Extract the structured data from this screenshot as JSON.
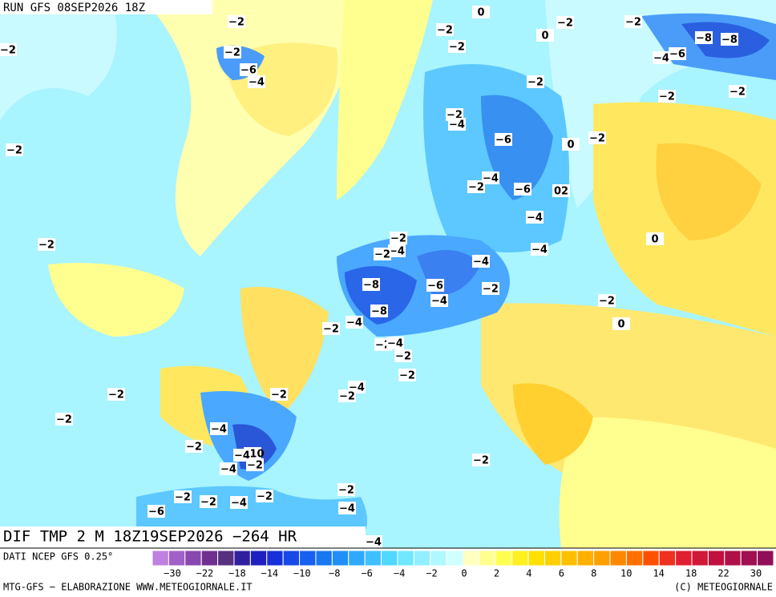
{
  "header": {
    "run": "RUN GFS 08SEP2026 18Z"
  },
  "map": {
    "title": "DIF TMP 2 M 18Z19SEP2026 −264 HR",
    "contour_labels": [
      "−2",
      "−2",
      "−6",
      "−4",
      "−2",
      "−2",
      "−2",
      "−2",
      "−2",
      "0",
      "−2",
      "−2",
      "0",
      "−2",
      "−2",
      "−8",
      "−8",
      "−4",
      "−6",
      "−2",
      "−2",
      "−2",
      "−2",
      "−4",
      "−6",
      "0",
      "−2",
      "−4",
      "−2",
      "−6",
      "02",
      "−4",
      "0",
      "−2",
      "−4",
      "−2",
      "−4",
      "−4",
      "−8",
      "−6",
      "−2",
      "−4",
      "−8",
      "−4",
      "−2",
      "−2",
      "0",
      "−2",
      "−4",
      "−2",
      "−2",
      "−4",
      "−2",
      "−2",
      "−4",
      "−2",
      "−10",
      "−4",
      "−2",
      "−4",
      "−2",
      "−2",
      "−2",
      "−4",
      "−2",
      "−6",
      "−2",
      "−4",
      "−4"
    ]
  },
  "footer": {
    "source": "DATI NCEP GFS 0.25°",
    "credit": "MTG-GFS − ELABORAZIONE WWW.METEOGIORNALE.IT",
    "copyright": "(C) METEOGIORNALE"
  },
  "legend": {
    "colors": [
      "#c080e0",
      "#a060c8",
      "#8848b0",
      "#703090",
      "#583080",
      "#3020a0",
      "#2020c0",
      "#1830d8",
      "#1848e8",
      "#1860f0",
      "#1878f0",
      "#2090f8",
      "#30a8ff",
      "#40c0ff",
      "#50d8ff",
      "#70e8ff",
      "#90f0ff",
      "#b0f8ff",
      "#d0ffff",
      "#ffffc0",
      "#ffff90",
      "#ffff50",
      "#fff020",
      "#ffe000",
      "#ffd000",
      "#ffc000",
      "#ffb000",
      "#ffa000",
      "#ff8800",
      "#ff7000",
      "#ff5000",
      "#f03020",
      "#e02030",
      "#d01838",
      "#c01040",
      "#b01048",
      "#a01050",
      "#901058"
    ],
    "labels": [
      "−30",
      "−22",
      "−18",
      "−14",
      "−10",
      "−8",
      "−6",
      "−4",
      "−2",
      "0",
      "2",
      "4",
      "6",
      "8",
      "10",
      "14",
      "18",
      "22",
      "30"
    ]
  }
}
